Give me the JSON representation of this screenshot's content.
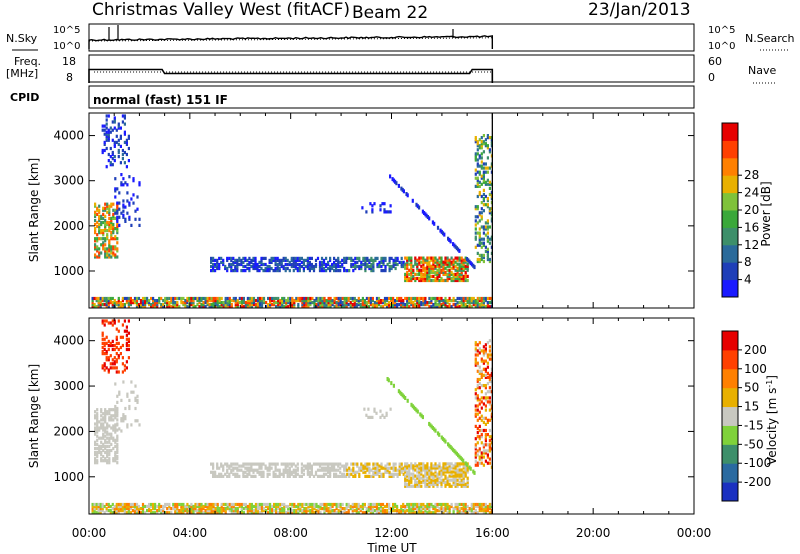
{
  "header": {
    "title": "Christmas Valley West (fitACF)",
    "beam": "Beam 22",
    "date": "23/Jan/2013"
  },
  "status_panels": {
    "nsky_label": "N.Sky",
    "nsearch_label": "N.Search",
    "count_ticks": [
      "10^5",
      "10^0"
    ],
    "freq_label_line1": "Freq.",
    "freq_label_line2": "[MHz]",
    "freq_ticks": [
      18,
      8
    ],
    "nave_label": "Nave",
    "nave_ticks": [
      60,
      0
    ],
    "cpid_label": "CPID",
    "cpid_text": "normal (fast) 151 IF",
    "freq_profile_hours": [
      0,
      0.5,
      2.9,
      3.0,
      15.1,
      15.2,
      16.0
    ],
    "freq_profile_mhz": [
      13.0,
      13.0,
      13.0,
      11.5,
      11.5,
      13.0,
      13.0
    ]
  },
  "chart_data": [
    {
      "type": "heatmap",
      "name": "power",
      "ylabel": "Slant Range [km]",
      "xlabel": "Time UT",
      "xlim": [
        0,
        24
      ],
      "ylim": [
        180,
        4500
      ],
      "x_ticks": [
        "00:00",
        "04:00",
        "08:00",
        "12:00",
        "16:00",
        "20:00",
        "00:00"
      ],
      "y_ticks": [
        1000,
        2000,
        3000,
        4000
      ],
      "data_end_hour": 16.0,
      "colorbar": {
        "label": "Power [dB]",
        "ticks": [
          4,
          8,
          12,
          16,
          20,
          24,
          28
        ],
        "colors": [
          "#1a1aff",
          "#1f3fb8",
          "#2a6a9a",
          "#3d8f6a",
          "#3aa83a",
          "#7fc23a",
          "#e8b000",
          "#ff8000",
          "#ff4000",
          "#e60000"
        ]
      }
    },
    {
      "type": "heatmap",
      "name": "velocity",
      "ylabel": "Slant Range [km]",
      "xlabel": "Time UT",
      "xlim": [
        0,
        24
      ],
      "ylim": [
        180,
        4500
      ],
      "x_ticks": [
        "00:00",
        "04:00",
        "08:00",
        "12:00",
        "16:00",
        "20:00",
        "00:00"
      ],
      "y_ticks": [
        1000,
        2000,
        3000,
        4000
      ],
      "data_end_hour": 16.0,
      "colorbar": {
        "label": "Velocity [m s^-1]",
        "ticks": [
          200,
          100,
          50,
          15,
          -15,
          -50,
          -100,
          -200
        ],
        "colors": [
          "#1a30c0",
          "#2a6aa0",
          "#3d8f6a",
          "#7fd23a",
          "#c8c8c0",
          "#e8b000",
          "#ff8000",
          "#ff4000",
          "#e60000"
        ]
      }
    }
  ]
}
